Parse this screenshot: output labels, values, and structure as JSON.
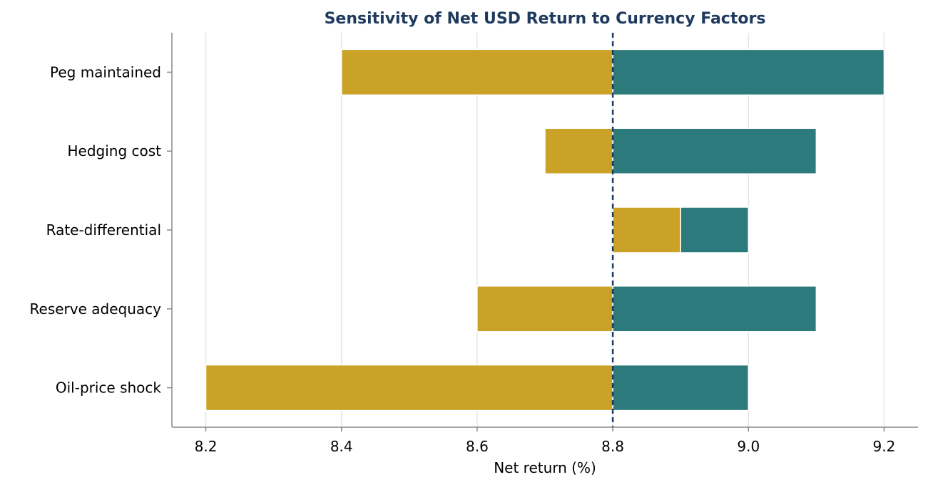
{
  "chart_data": {
    "type": "bar",
    "orientation": "horizontal",
    "title": "Sensitivity of Net USD Return to Currency Factors",
    "xlabel": "Net return (%)",
    "ylabel": "",
    "xlim": [
      8.15,
      9.25
    ],
    "xticks": [
      "8.2",
      "8.4",
      "8.6",
      "8.8",
      "9.0",
      "9.2"
    ],
    "baseline": 8.8,
    "grid": "vertical",
    "categories": [
      "Peg maintained",
      "Hedging cost",
      "Rate-differential",
      "Reserve adequacy",
      "Oil-price shock"
    ],
    "series": [
      {
        "low": [
          8.4,
          8.7,
          8.8,
          8.6,
          8.2
        ],
        "high": [
          8.8,
          8.8,
          8.9,
          8.8,
          8.8
        ]
      },
      {
        "low": [
          8.8,
          8.8,
          8.9,
          8.8,
          8.8
        ],
        "high": [
          9.2,
          9.1,
          9.0,
          9.1,
          9.0
        ]
      }
    ],
    "colors": {
      "downside": "#C9A227",
      "upside": "#2C7A7B",
      "title": "#1F3A5F",
      "baseline": "#1F3A5F",
      "grid": "#E5E5E5",
      "axis": "#888888"
    }
  }
}
